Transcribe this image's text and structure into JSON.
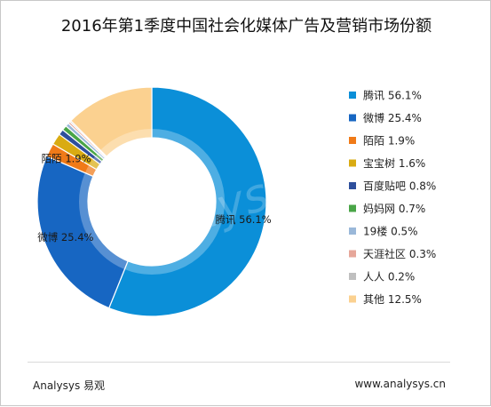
{
  "chart_data": {
    "type": "pie",
    "title": "2016年第1季度中国社会化媒体广告及营销市场份额",
    "unit": "%",
    "legend_position": "right",
    "slices": [
      {
        "name": "腾讯",
        "value": 56.1,
        "label": "56.1%",
        "color": "#0b8fd8"
      },
      {
        "name": "微博",
        "value": 25.4,
        "label": "25.4%",
        "color": "#1766c2"
      },
      {
        "name": "陌陌",
        "value": 1.9,
        "label": "1.9%",
        "color": "#f07a18"
      },
      {
        "name": "宝宝树",
        "value": 1.6,
        "label": "1.6%",
        "color": "#d9ab12"
      },
      {
        "name": "百度贴吧",
        "value": 0.8,
        "label": "0.8%",
        "color": "#2e4f9c"
      },
      {
        "name": "妈妈网",
        "value": 0.7,
        "label": "0.7%",
        "color": "#49a547"
      },
      {
        "name": "19楼",
        "value": 0.5,
        "label": "0.5%",
        "color": "#9ab8d9"
      },
      {
        "name": "天涯社区",
        "value": 0.3,
        "label": "0.3%",
        "color": "#e6a79a"
      },
      {
        "name": "人人",
        "value": 0.2,
        "label": "0.2%",
        "color": "#bfbfbf"
      },
      {
        "name": "其他",
        "value": 12.5,
        "label": "12.5%",
        "color": "#fbd190"
      }
    ],
    "slice_labels_shown": [
      "腾讯",
      "微博",
      "陌陌"
    ]
  },
  "watermark": "Analysys",
  "footer": {
    "left": "Analysys 易观",
    "right": "www.analysys.cn"
  }
}
